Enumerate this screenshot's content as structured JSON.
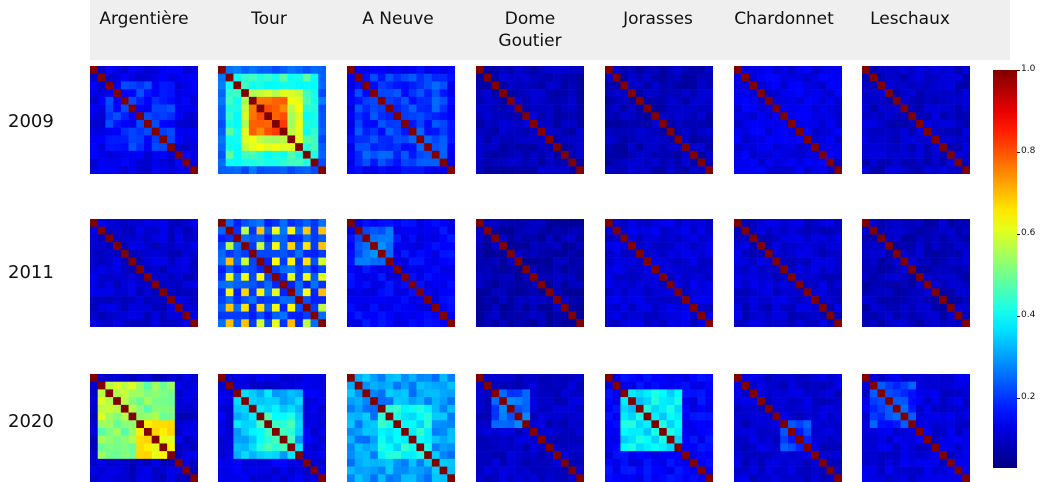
{
  "chart_data": {
    "type": "heatmap",
    "title": "",
    "columns": [
      "Argentière",
      "Tour",
      "A Neuve",
      "Dome\nGoutier",
      "Jorasses",
      "Chardonnet",
      "Leschaux"
    ],
    "rows": [
      "2009",
      "2011",
      "2020"
    ],
    "matrix_size": 14,
    "colormap": "jet",
    "vmin": 0,
    "vmax": 1,
    "colorbar": {
      "ticks": [
        0.2,
        0.4,
        0.6,
        0.8,
        1.0
      ],
      "tick_labels": [
        "0.2",
        "0.4",
        "0.6",
        "0.8",
        "1.0"
      ]
    },
    "diagonal_value": 1.0,
    "panels": [
      {
        "row": "2009",
        "column": "Argentière",
        "base": 0.1,
        "blocks": [
          [
            2,
            10,
            0.16
          ]
        ]
      },
      {
        "row": "2009",
        "column": "Tour",
        "base": 0.22,
        "blocks": [
          [
            1,
            12,
            0.42
          ],
          [
            3,
            10,
            0.58
          ],
          [
            4,
            8,
            0.78
          ]
        ]
      },
      {
        "row": "2009",
        "column": "A Neuve",
        "base": 0.12,
        "blocks": [
          [
            1,
            12,
            0.18
          ]
        ]
      },
      {
        "row": "2009",
        "column": "Dome Goutier",
        "base": 0.06,
        "blocks": []
      },
      {
        "row": "2009",
        "column": "Jorasses",
        "base": 0.06,
        "blocks": []
      },
      {
        "row": "2009",
        "column": "Chardonnet",
        "base": 0.1,
        "blocks": []
      },
      {
        "row": "2009",
        "column": "Leschaux",
        "base": 0.07,
        "blocks": []
      },
      {
        "row": "2011",
        "column": "Argentière",
        "base": 0.08,
        "blocks": []
      },
      {
        "row": "2011",
        "column": "Tour",
        "base": 0.25,
        "checker": [
          0.15,
          0.55
        ]
      },
      {
        "row": "2011",
        "column": "A Neuve",
        "base": 0.12,
        "blocks": [
          [
            1,
            5,
            0.22
          ]
        ]
      },
      {
        "row": "2011",
        "column": "Dome Goutier",
        "base": 0.05,
        "blocks": []
      },
      {
        "row": "2011",
        "column": "Jorasses",
        "base": 0.09,
        "blocks": []
      },
      {
        "row": "2011",
        "column": "Chardonnet",
        "base": 0.08,
        "blocks": []
      },
      {
        "row": "2011",
        "column": "Leschaux",
        "base": 0.06,
        "blocks": []
      },
      {
        "row": "2020",
        "column": "Argentière",
        "base": 0.08,
        "blocks": [
          [
            1,
            5,
            0.55
          ],
          [
            6,
            10,
            0.62
          ]
        ],
        "cross": [
          [
            1,
            5,
            6,
            10,
            0.5
          ]
        ]
      },
      {
        "row": "2020",
        "column": "Tour",
        "base": 0.1,
        "blocks": [
          [
            2,
            10,
            0.32
          ],
          [
            5,
            9,
            0.42
          ]
        ]
      },
      {
        "row": "2020",
        "column": "A Neuve",
        "base": 0.18,
        "blocks": [
          [
            0,
            13,
            0.28
          ],
          [
            4,
            10,
            0.38
          ]
        ]
      },
      {
        "row": "2020",
        "column": "Dome Goutier",
        "base": 0.07,
        "blocks": [
          [
            2,
            6,
            0.22
          ]
        ]
      },
      {
        "row": "2020",
        "column": "Jorasses",
        "base": 0.12,
        "blocks": [
          [
            2,
            9,
            0.36
          ]
        ]
      },
      {
        "row": "2020",
        "column": "Chardonnet",
        "base": 0.08,
        "blocks": [
          [
            6,
            9,
            0.18
          ]
        ]
      },
      {
        "row": "2020",
        "column": "Leschaux",
        "base": 0.09,
        "blocks": [
          [
            1,
            6,
            0.18
          ]
        ]
      }
    ]
  }
}
